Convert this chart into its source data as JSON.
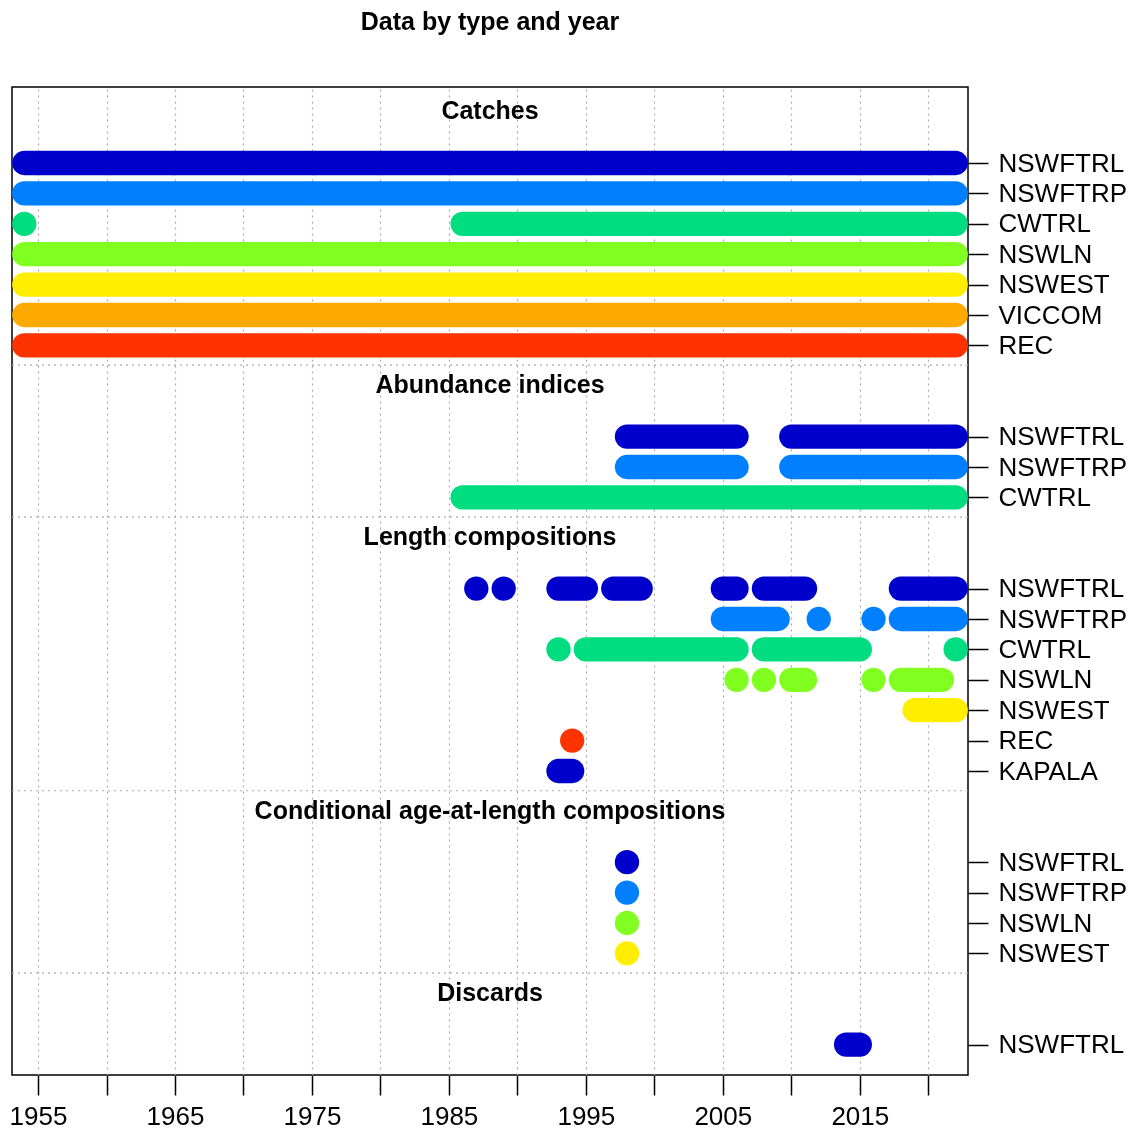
{
  "chart_data": {
    "type": "bar",
    "orientation": "horizontal",
    "title": "Data by type and year",
    "annotations": [
      "Catches",
      "Abundance indices",
      "Length compositions",
      "Conditional age-at-length compositions",
      "Discards"
    ],
    "categories": [
      null,
      null,
      "NSWFTRL",
      "NSWFTRP",
      "CWTRL",
      "NSWLN",
      "NSWEST",
      "VICCOM",
      "REC",
      null,
      null,
      "NSWFTRL",
      "NSWFTRP",
      "CWTRL",
      null,
      null,
      "NSWFTRL",
      "NSWFTRP",
      "CWTRL",
      "NSWLN",
      "NSWEST",
      "REC",
      "KAPALA",
      null,
      null,
      "NSWFTRL",
      "NSWFTRP",
      "NSWLN",
      "NSWEST",
      null,
      null,
      "NSWFTRL"
    ],
    "series": [
      {
        "colors": [
          null,
          null,
          "#0000cc",
          "#0080ff",
          "#00dd80",
          "#80ff20",
          "#ffee00",
          "#ffaa00",
          "#ff3300",
          null,
          null,
          "#0000cc",
          "#0080ff",
          "#00dd80",
          null,
          null,
          "#0000cc",
          "#0080ff",
          "#00dd80",
          "#80ff20",
          "#ffee00",
          "#ff3300",
          "#0000cc",
          null,
          null,
          "#0000cc",
          "#0080ff",
          "#80ff20",
          "#ffee00",
          null,
          null,
          "#0000cc"
        ],
        "base": [
          null,
          null,
          1954,
          1954,
          1954,
          1954,
          1954,
          1954,
          1954,
          null,
          null,
          1998,
          1998,
          1986,
          null,
          null,
          1987,
          2005,
          1993,
          2006,
          2019,
          1994,
          1993,
          null,
          null,
          1998,
          1998,
          1998,
          1998,
          null,
          null,
          2014
        ],
        "values": [
          null,
          null,
          68,
          68,
          0,
          68,
          68,
          68,
          68,
          null,
          null,
          8,
          8,
          36,
          null,
          null,
          0,
          4,
          0,
          0,
          3,
          0,
          1,
          null,
          null,
          0,
          0,
          0,
          0,
          null,
          null,
          1
        ]
      },
      {
        "colors": [
          null,
          null,
          null,
          null,
          "#00dd80",
          null,
          null,
          null,
          null,
          null,
          null,
          "#0000cc",
          "#0080ff",
          null,
          null,
          null,
          "#0000cc",
          "#0080ff",
          "#00dd80",
          "#80ff20",
          null,
          null,
          null,
          null,
          null,
          null,
          null,
          null,
          null,
          null,
          null,
          null
        ],
        "base": [
          null,
          null,
          null,
          null,
          1986,
          null,
          null,
          null,
          null,
          null,
          null,
          2010,
          2010,
          null,
          null,
          null,
          1989,
          2012,
          1995,
          2008,
          null,
          null,
          null,
          null,
          null,
          null,
          null,
          null,
          null,
          null,
          null,
          null
        ],
        "values": [
          null,
          null,
          null,
          null,
          36,
          null,
          null,
          null,
          null,
          null,
          null,
          12,
          12,
          null,
          null,
          null,
          0,
          0,
          11,
          0,
          null,
          null,
          null,
          null,
          null,
          null,
          null,
          null,
          null,
          null,
          null,
          null
        ]
      },
      {
        "colors": [
          null,
          null,
          null,
          null,
          null,
          null,
          null,
          null,
          null,
          null,
          null,
          null,
          null,
          null,
          null,
          null,
          "#0000cc",
          "#0080ff",
          "#00dd80",
          "#80ff20",
          null,
          null,
          null,
          null,
          null,
          null,
          null,
          null,
          null,
          null,
          null,
          null
        ],
        "base": [
          null,
          null,
          null,
          null,
          null,
          null,
          null,
          null,
          null,
          null,
          null,
          null,
          null,
          null,
          null,
          null,
          1993,
          2016,
          2008,
          2010,
          null,
          null,
          null,
          null,
          null,
          null,
          null,
          null,
          null,
          null,
          null,
          null
        ],
        "values": [
          null,
          null,
          null,
          null,
          null,
          null,
          null,
          null,
          null,
          null,
          null,
          null,
          null,
          null,
          null,
          null,
          2,
          0,
          7,
          1,
          null,
          null,
          null,
          null,
          null,
          null,
          null,
          null,
          null,
          null,
          null,
          null
        ]
      },
      {
        "colors": [
          null,
          null,
          null,
          null,
          null,
          null,
          null,
          null,
          null,
          null,
          null,
          null,
          null,
          null,
          null,
          null,
          "#0000cc",
          "#0080ff",
          "#00dd80",
          "#80ff20",
          null,
          null,
          null,
          null,
          null,
          null,
          null,
          null,
          null,
          null,
          null,
          null
        ],
        "base": [
          null,
          null,
          null,
          null,
          null,
          null,
          null,
          null,
          null,
          null,
          null,
          null,
          null,
          null,
          null,
          null,
          1997,
          2018,
          2022,
          2016,
          null,
          null,
          null,
          null,
          null,
          null,
          null,
          null,
          null,
          null,
          null,
          null
        ],
        "values": [
          null,
          null,
          null,
          null,
          null,
          null,
          null,
          null,
          null,
          null,
          null,
          null,
          null,
          null,
          null,
          null,
          2,
          4,
          0,
          0,
          null,
          null,
          null,
          null,
          null,
          null,
          null,
          null,
          null,
          null,
          null,
          null
        ]
      },
      {
        "colors": [
          null,
          null,
          null,
          null,
          null,
          null,
          null,
          null,
          null,
          null,
          null,
          null,
          null,
          null,
          null,
          null,
          "#0000cc",
          null,
          null,
          "#80ff20",
          null,
          null,
          null,
          null,
          null,
          null,
          null,
          null,
          null,
          null,
          null,
          null
        ],
        "base": [
          null,
          null,
          null,
          null,
          null,
          null,
          null,
          null,
          null,
          null,
          null,
          null,
          null,
          null,
          null,
          null,
          2005,
          null,
          null,
          2018,
          null,
          null,
          null,
          null,
          null,
          null,
          null,
          null,
          null,
          null,
          null,
          null
        ],
        "values": [
          null,
          null,
          null,
          null,
          null,
          null,
          null,
          null,
          null,
          null,
          null,
          null,
          null,
          null,
          null,
          null,
          1,
          null,
          null,
          3,
          null,
          null,
          null,
          null,
          null,
          null,
          null,
          null,
          null,
          null,
          null,
          null
        ]
      },
      {
        "color": "#0000cc",
        "base": [
          null,
          null,
          null,
          null,
          null,
          null,
          null,
          null,
          null,
          null,
          null,
          null,
          null,
          null,
          null,
          null,
          2008,
          null,
          null,
          null,
          null,
          null,
          null,
          null,
          null,
          null,
          null,
          null,
          null,
          null,
          null,
          null
        ],
        "values": [
          null,
          null,
          null,
          null,
          null,
          null,
          null,
          null,
          null,
          null,
          null,
          null,
          null,
          null,
          null,
          null,
          3,
          null,
          null,
          null,
          null,
          null,
          null,
          null,
          null,
          null,
          null,
          null,
          null,
          null,
          null,
          null
        ]
      },
      {
        "color": "#0000cc",
        "base": [
          null,
          null,
          null,
          null,
          null,
          null,
          null,
          null,
          null,
          null,
          null,
          null,
          null,
          null,
          null,
          null,
          2018,
          null,
          null,
          null,
          null,
          null,
          null,
          null,
          null,
          null,
          null,
          null,
          null,
          null,
          null,
          null
        ],
        "values": [
          null,
          null,
          null,
          null,
          null,
          null,
          null,
          null,
          null,
          null,
          null,
          null,
          null,
          null,
          null,
          null,
          4,
          null,
          null,
          null,
          null,
          null,
          null,
          null,
          null,
          null,
          null,
          null,
          null,
          null,
          null,
          null
        ]
      }
    ],
    "xlim": [
      1953.1,
      2022.9
    ],
    "xticks": [
      1955,
      {
        "value": 1960,
        "label": null
      },
      1965,
      {
        "value": 1970,
        "label": null
      },
      1975,
      {
        "value": 1980,
        "label": null
      },
      1985,
      {
        "value": 1990,
        "label": null
      },
      1995,
      {
        "value": 2000,
        "label": null
      },
      2005,
      {
        "value": 2010,
        "label": null
      },
      2015,
      {
        "value": 2020,
        "label": null
      }
    ],
    "grid": "x"
  }
}
